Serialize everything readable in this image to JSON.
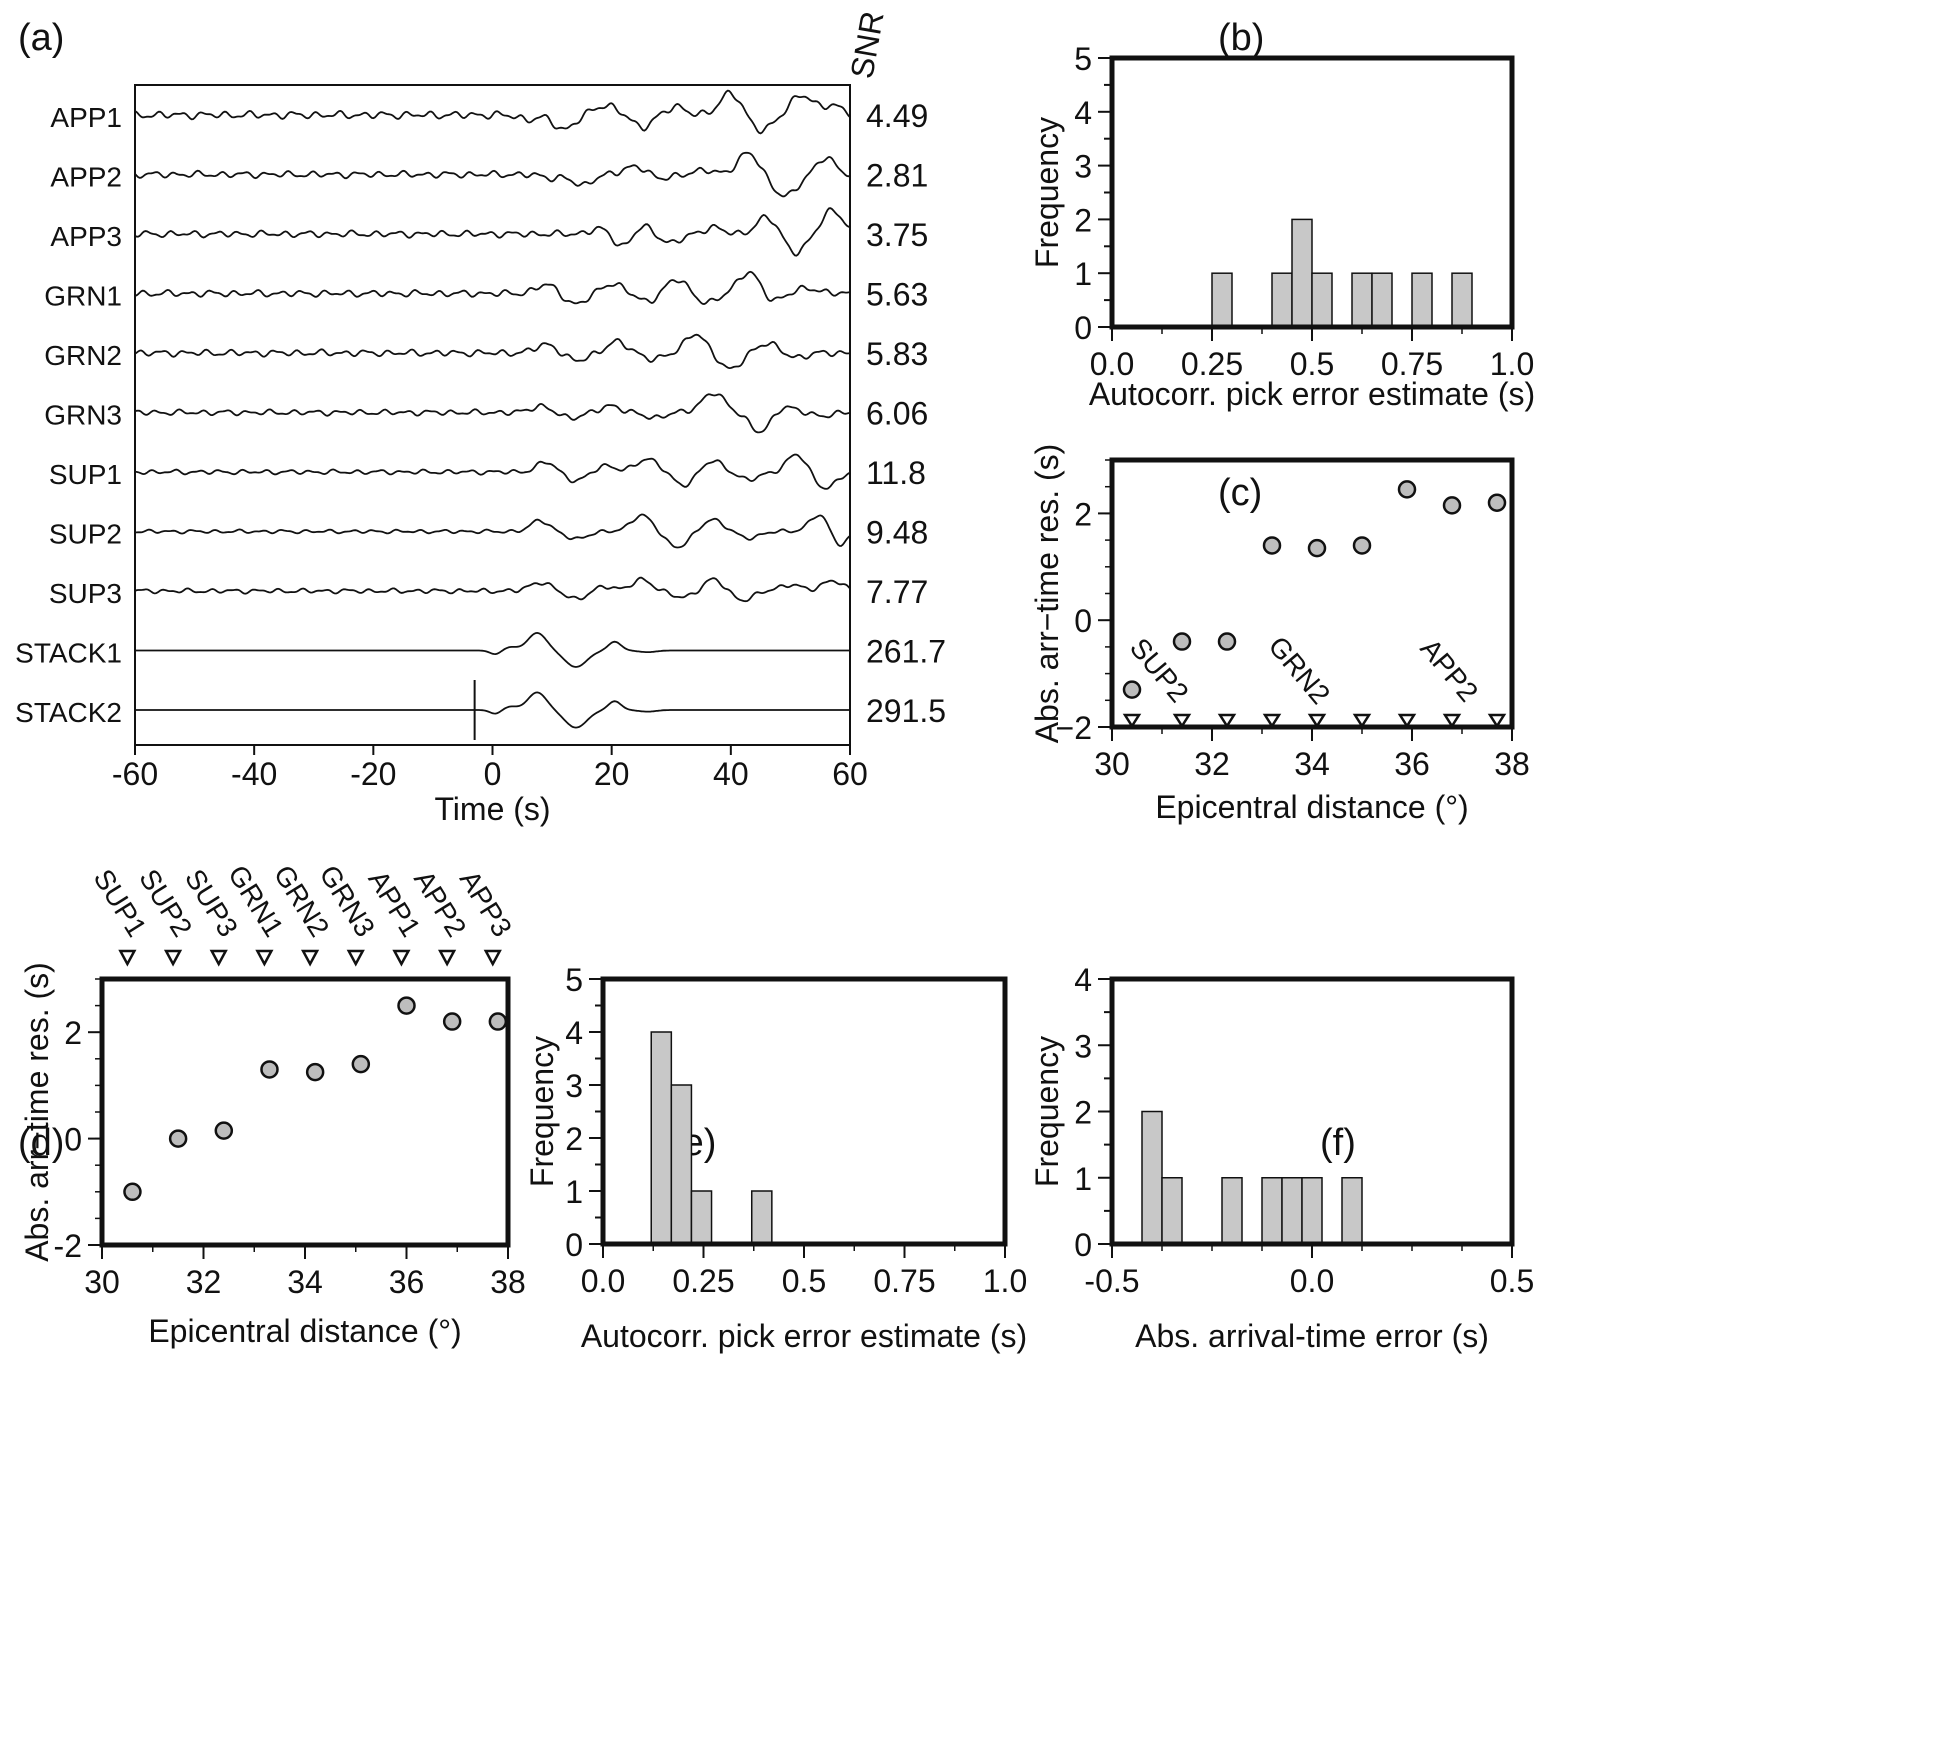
{
  "panel_labels": {
    "a": "(a)",
    "b": "(b)",
    "c": "(c)",
    "d": "(d)",
    "e": "(e)",
    "f": "(f)"
  },
  "colors": {
    "bar_fill": "#c8c8c8",
    "point_fill": "#bdbdbd",
    "ink": "#111111"
  },
  "chart_data": [
    {
      "panel": "a",
      "type": "line",
      "title": "",
      "xlabel": "Time (s)",
      "ylabel": "",
      "xlim": [
        -60,
        60
      ],
      "xticks": [
        -60,
        -40,
        -20,
        0,
        20,
        40,
        60
      ],
      "snr_header": "SNR",
      "grid": false,
      "traces": [
        {
          "label": "APP1",
          "snr": "4.49",
          "onset": 4,
          "pulses": [
            [
              6,
              -0.4,
              2.2
            ],
            [
              12,
              -1.3,
              2.4
            ],
            [
              19,
              0.9,
              2.6
            ],
            [
              25,
              -1.1,
              2.2
            ],
            [
              31,
              0.7,
              2.4
            ],
            [
              40,
              2.1,
              2.4
            ],
            [
              45,
              -1.4,
              2.6
            ],
            [
              52,
              1.8,
              2.6
            ],
            [
              57,
              0.8,
              2.4
            ]
          ],
          "noise": 0.4
        },
        {
          "label": "APP2",
          "snr": "2.81",
          "onset": 4,
          "pulses": [
            [
              10,
              -0.3,
              2.4
            ],
            [
              15,
              -1.0,
              2.2
            ],
            [
              24,
              0.8,
              2.4
            ],
            [
              28,
              -0.4,
              2.2
            ],
            [
              36,
              0.4,
              2.4
            ],
            [
              43,
              2.0,
              2.4
            ],
            [
              49,
              -2.0,
              2.8
            ],
            [
              56,
              1.5,
              2.2
            ]
          ],
          "noise": 0.35
        },
        {
          "label": "APP3",
          "snr": "3.75",
          "onset": 4,
          "pulses": [
            [
              18,
              0.5,
              2.2
            ],
            [
              22,
              -1.2,
              2.2
            ],
            [
              25,
              0.8,
              2.2
            ],
            [
              30,
              -0.8,
              2.4
            ],
            [
              37,
              0.6,
              2.2
            ],
            [
              46,
              1.5,
              2.4
            ],
            [
              51,
              -1.7,
              2.4
            ],
            [
              57,
              2.2,
              2.4
            ]
          ],
          "noise": 0.35
        },
        {
          "label": "GRN1",
          "snr": "5.63",
          "onset": 4,
          "pulses": [
            [
              9,
              0.8,
              2.4
            ],
            [
              14,
              -1.0,
              2.4
            ],
            [
              20,
              0.9,
              2.4
            ],
            [
              26,
              -0.7,
              2.2
            ],
            [
              31,
              1.3,
              2.4
            ],
            [
              36,
              -0.9,
              2.4
            ],
            [
              43,
              1.9,
              2.6
            ],
            [
              47,
              -0.7,
              2.2
            ],
            [
              53,
              0.5,
              2.4
            ]
          ],
          "noise": 0.35
        },
        {
          "label": "GRN2",
          "snr": "5.83",
          "onset": 4,
          "pulses": [
            [
              9,
              0.8,
              2.4
            ],
            [
              14,
              -0.7,
              2.4
            ],
            [
              21,
              1.0,
              2.4
            ],
            [
              27,
              -0.6,
              2.2
            ],
            [
              34,
              1.7,
              2.4
            ],
            [
              40,
              -1.5,
              2.4
            ],
            [
              46,
              0.9,
              2.4
            ],
            [
              51,
              -0.4,
              2.2
            ]
          ],
          "noise": 0.35
        },
        {
          "label": "GRN3",
          "snr": "6.06",
          "onset": 4,
          "pulses": [
            [
              8,
              0.6,
              2.2
            ],
            [
              13,
              -0.5,
              2.2
            ],
            [
              20,
              0.6,
              2.2
            ],
            [
              27,
              -0.5,
              2.2
            ],
            [
              37,
              1.8,
              2.6
            ],
            [
              45,
              -1.8,
              2.4
            ],
            [
              49,
              0.6,
              2.4
            ],
            [
              55,
              -0.3,
              2.4
            ]
          ],
          "noise": 0.3
        },
        {
          "label": "SUP1",
          "snr": "11.8",
          "onset": 4,
          "pulses": [
            [
              9,
              0.9,
              2.2
            ],
            [
              14,
              -0.8,
              2.4
            ],
            [
              19,
              0.6,
              2.2
            ],
            [
              26,
              1.2,
              2.6
            ],
            [
              32,
              -1.2,
              2.4
            ],
            [
              37,
              1.0,
              2.4
            ],
            [
              43,
              -0.7,
              2.4
            ],
            [
              51,
              1.6,
              2.2
            ],
            [
              56,
              -1.5,
              2.4
            ]
          ],
          "noise": 0.25
        },
        {
          "label": "SUP2",
          "snr": "9.48",
          "onset": 4,
          "pulses": [
            [
              8,
              1.0,
              2.2
            ],
            [
              14,
              -0.7,
              2.4
            ],
            [
              25,
              1.5,
              2.4
            ],
            [
              31,
              -1.4,
              2.6
            ],
            [
              37,
              1.1,
              2.4
            ],
            [
              43,
              -0.6,
              2.4
            ],
            [
              55,
              1.6,
              2.4
            ],
            [
              58,
              -1.4,
              2.0
            ]
          ],
          "noise": 0.2
        },
        {
          "label": "SUP3",
          "snr": "7.77",
          "onset": 4,
          "pulses": [
            [
              8,
              0.8,
              2.4
            ],
            [
              14,
              -0.7,
              2.4
            ],
            [
              19,
              0.4,
              2.2
            ],
            [
              25,
              1.0,
              2.4
            ],
            [
              32,
              -0.6,
              2.4
            ],
            [
              37,
              1.1,
              2.2
            ],
            [
              42,
              -0.8,
              2.4
            ],
            [
              50,
              0.6,
              2.4
            ],
            [
              57,
              1.0,
              2.2
            ]
          ],
          "noise": 0.25
        },
        {
          "label": "STACK1",
          "snr": "261.7",
          "onset": 0,
          "pulses": [
            [
              0.5,
              -0.35,
              1.3
            ],
            [
              3,
              0.3,
              1.6
            ],
            [
              7.5,
              1.6,
              2.2
            ],
            [
              14,
              -1.5,
              2.6
            ],
            [
              20.5,
              0.8,
              1.5
            ],
            [
              26,
              -0.15,
              2.0
            ]
          ],
          "noise": 0
        },
        {
          "label": "STACK2",
          "snr": "291.5",
          "onset": 0,
          "pulses": [
            [
              0.5,
              -0.35,
              1.3
            ],
            [
              3,
              0.3,
              1.6
            ],
            [
              7.5,
              1.6,
              2.2
            ],
            [
              14,
              -1.6,
              2.6
            ],
            [
              20.5,
              0.8,
              1.5
            ],
            [
              26,
              -0.15,
              2.0
            ]
          ],
          "noise": 0,
          "marker_x": -3
        }
      ]
    },
    {
      "panel": "b",
      "type": "bar",
      "title": "",
      "xlabel": "Autocorr. pick error estimate (s)",
      "ylabel": "Frequency",
      "xlim": [
        0,
        1
      ],
      "ylim": [
        0,
        5
      ],
      "xticks": [
        "0.0",
        "0.25",
        "0.5",
        "0.75",
        "1.0"
      ],
      "yticks": [
        "0",
        "1",
        "2",
        "3",
        "4",
        "5"
      ],
      "bin_width": 0.05,
      "bins": [
        {
          "x": 0.25,
          "value": 1
        },
        {
          "x": 0.4,
          "value": 1
        },
        {
          "x": 0.45,
          "value": 2
        },
        {
          "x": 0.5,
          "value": 1
        },
        {
          "x": 0.6,
          "value": 1
        },
        {
          "x": 0.65,
          "value": 1
        },
        {
          "x": 0.75,
          "value": 1
        },
        {
          "x": 0.85,
          "value": 1
        }
      ]
    },
    {
      "panel": "c",
      "type": "scatter",
      "title": "",
      "xlabel": "Epicentral distance (°)",
      "ylabel": "Abs. arr−time res. (s)",
      "xlim": [
        30,
        38
      ],
      "ylim": [
        -2,
        3
      ],
      "xticks": [
        "30",
        "32",
        "34",
        "36",
        "38"
      ],
      "yticks": [
        {
          "v": 2,
          "t": "2"
        },
        {
          "v": 0,
          "t": "0"
        },
        {
          "v": -2,
          "t": "−2"
        }
      ],
      "points": [
        {
          "x": 30.4,
          "y": -1.3
        },
        {
          "x": 31.4,
          "y": -0.4
        },
        {
          "x": 32.3,
          "y": -0.4
        },
        {
          "x": 33.2,
          "y": 1.4
        },
        {
          "x": 34.1,
          "y": 1.35
        },
        {
          "x": 35.0,
          "y": 1.4
        },
        {
          "x": 35.9,
          "y": 2.45
        },
        {
          "x": 36.8,
          "y": 2.15
        },
        {
          "x": 37.7,
          "y": 2.2
        }
      ],
      "stations": [
        {
          "x": 30.4
        },
        {
          "x": 31.4
        },
        {
          "x": 32.3
        },
        {
          "x": 33.2
        },
        {
          "x": 34.1
        },
        {
          "x": 35.0
        },
        {
          "x": 35.9
        },
        {
          "x": 36.8
        },
        {
          "x": 37.7
        }
      ],
      "annotations": [
        {
          "x": 30.8,
          "y": -1.05,
          "text": "SUP2"
        },
        {
          "x": 33.6,
          "y": -1.05,
          "text": "GRN2"
        },
        {
          "x": 36.6,
          "y": -1.05,
          "text": "APP2"
        }
      ]
    },
    {
      "panel": "d",
      "type": "scatter",
      "title": "",
      "xlabel": "Epicentral distance (°)",
      "ylabel": "Abs. arr−time res. (s)",
      "xlim": [
        30,
        38
      ],
      "ylim": [
        -2,
        3
      ],
      "xticks": [
        "30",
        "32",
        "34",
        "36",
        "38"
      ],
      "yticks": [
        {
          "v": 2,
          "t": "2"
        },
        {
          "v": 0,
          "t": "0"
        },
        {
          "v": -2,
          "t": "-2"
        }
      ],
      "points": [
        {
          "x": 30.6,
          "y": -1.0
        },
        {
          "x": 31.5,
          "y": 0.0
        },
        {
          "x": 32.4,
          "y": 0.15
        },
        {
          "x": 33.3,
          "y": 1.3
        },
        {
          "x": 34.2,
          "y": 1.25
        },
        {
          "x": 35.1,
          "y": 1.4
        },
        {
          "x": 36.0,
          "y": 2.5
        },
        {
          "x": 36.9,
          "y": 2.2
        },
        {
          "x": 37.8,
          "y": 2.2
        }
      ],
      "stations": [
        {
          "x": 30.5,
          "name": "SUP1"
        },
        {
          "x": 31.4,
          "name": "SUP2"
        },
        {
          "x": 32.3,
          "name": "SUP3"
        },
        {
          "x": 33.2,
          "name": "GRN1"
        },
        {
          "x": 34.1,
          "name": "GRN2"
        },
        {
          "x": 35.0,
          "name": "GRN3"
        },
        {
          "x": 35.9,
          "name": "APP1"
        },
        {
          "x": 36.8,
          "name": "APP2"
        },
        {
          "x": 37.7,
          "name": "APP3"
        }
      ]
    },
    {
      "panel": "e",
      "type": "bar",
      "title": "",
      "xlabel": "Autocorr. pick error estimate (s)",
      "ylabel": "Frequency",
      "xlim": [
        0,
        1
      ],
      "ylim": [
        0,
        5
      ],
      "xticks": [
        "0.0",
        "0.25",
        "0.5",
        "0.75",
        "1.0"
      ],
      "yticks": [
        "0",
        "1",
        "2",
        "3",
        "4",
        "5"
      ],
      "bin_width": 0.05,
      "bins": [
        {
          "x": 0.12,
          "value": 4
        },
        {
          "x": 0.17,
          "value": 3
        },
        {
          "x": 0.22,
          "value": 1
        },
        {
          "x": 0.37,
          "value": 1
        }
      ]
    },
    {
      "panel": "f",
      "type": "bar",
      "title": "",
      "xlabel": "Abs. arrival-time error (s)",
      "ylabel": "Frequency",
      "xlim": [
        -0.5,
        0.5
      ],
      "ylim": [
        0,
        4
      ],
      "xticks": [
        "-0.5",
        "0.0",
        "0.5"
      ],
      "yticks": [
        "0",
        "1",
        "2",
        "3",
        "4"
      ],
      "bin_width": 0.05,
      "bins": [
        {
          "x": -0.425,
          "value": 2
        },
        {
          "x": -0.375,
          "value": 1
        },
        {
          "x": -0.225,
          "value": 1
        },
        {
          "x": -0.125,
          "value": 1
        },
        {
          "x": -0.075,
          "value": 1
        },
        {
          "x": -0.025,
          "value": 1
        },
        {
          "x": 0.075,
          "value": 1
        }
      ]
    }
  ]
}
